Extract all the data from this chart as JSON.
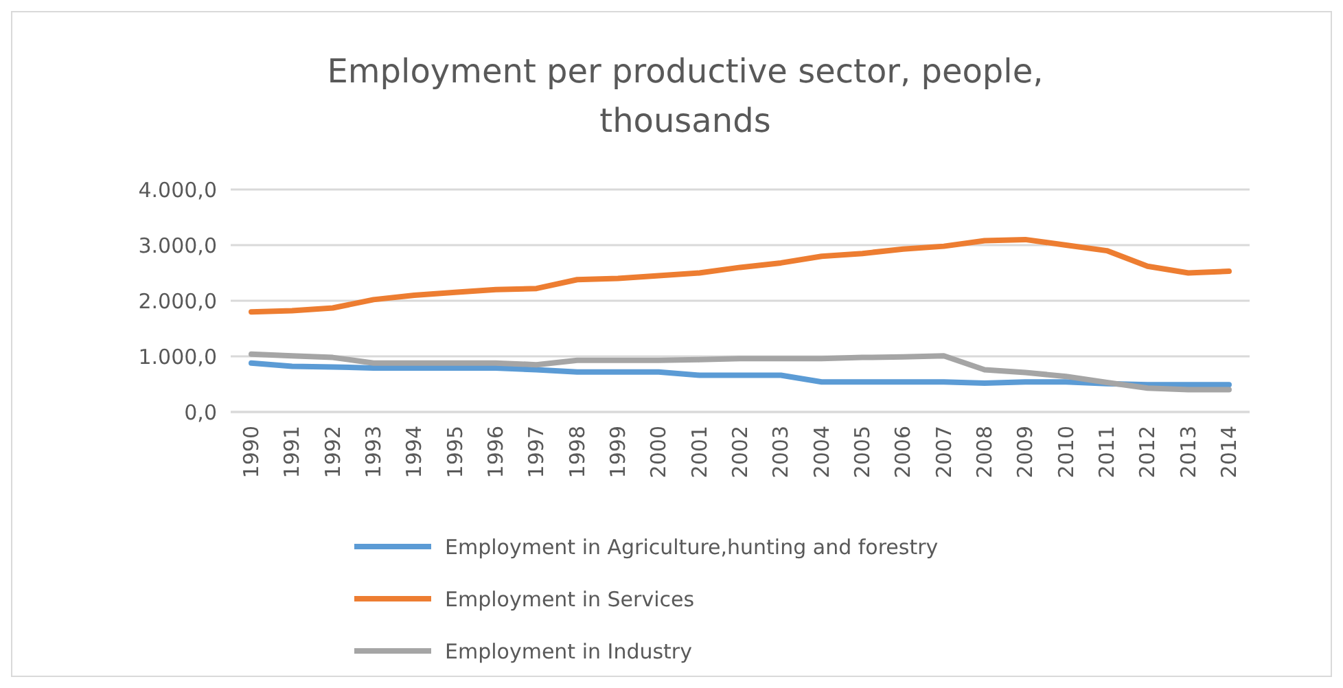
{
  "chart_data": {
    "type": "line",
    "title": "Employment per productive sector, people, thousands",
    "categories": [
      "1990",
      "1991",
      "1992",
      "1993",
      "1994",
      "1995",
      "1996",
      "1997",
      "1998",
      "1999",
      "2000",
      "2001",
      "2002",
      "2003",
      "2004",
      "2005",
      "2006",
      "2007",
      "2008",
      "2009",
      "2010",
      "2011",
      "2012",
      "2013",
      "2014"
    ],
    "series": [
      {
        "name": "Employment in Agriculture,hunting and forestry",
        "color": "#5b9bd5",
        "values": [
          880,
          820,
          810,
          790,
          790,
          790,
          790,
          760,
          720,
          720,
          720,
          660,
          660,
          660,
          540,
          540,
          540,
          540,
          520,
          540,
          540,
          510,
          490,
          490,
          490
        ]
      },
      {
        "name": "Employment in Services",
        "color": "#ed7d31",
        "values": [
          1800,
          1820,
          1870,
          2020,
          2100,
          2150,
          2200,
          2220,
          2380,
          2400,
          2450,
          2500,
          2600,
          2680,
          2800,
          2850,
          2930,
          2980,
          3080,
          3100,
          3000,
          2900,
          2620,
          2500,
          2530
        ]
      },
      {
        "name": "Employment in Industry",
        "color": "#a5a5a5",
        "values": [
          1040,
          1010,
          980,
          880,
          880,
          880,
          880,
          850,
          930,
          930,
          930,
          940,
          960,
          960,
          960,
          980,
          990,
          1010,
          760,
          710,
          640,
          530,
          430,
          400,
          400
        ]
      }
    ],
    "ylim": [
      0,
      4000
    ],
    "yticks": [
      {
        "value": 0,
        "label": "0,0"
      },
      {
        "value": 1000,
        "label": "1.000,0"
      },
      {
        "value": 2000,
        "label": "2.000,0"
      },
      {
        "value": 3000,
        "label": "3.000,0"
      },
      {
        "value": 4000,
        "label": "4.000,0"
      }
    ],
    "grid": "y",
    "legend": "bottom",
    "marker": "none",
    "line_style": "solid"
  }
}
